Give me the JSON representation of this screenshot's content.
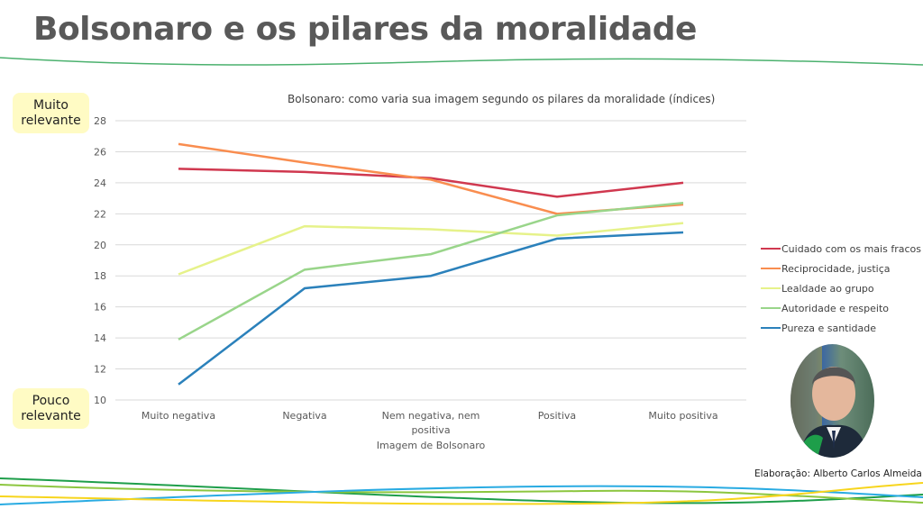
{
  "slide": {
    "title": "Bolsonaro e os pilares da moralidade",
    "top_label": [
      "Muito",
      "relevante"
    ],
    "bottom_label": [
      "Pouco",
      "relevante"
    ],
    "credit": "Elaboração: Alberto Carlos Almeida",
    "portrait_alt": "Foto de Jair Bolsonaro",
    "colors": {
      "title": "#595959",
      "relevance_box": "#fffbc4",
      "deco_green": "#1e9e4a",
      "deco_lightgreen": "#8cc63f",
      "deco_blue": "#29abe2",
      "deco_yellow": "#f7d51d"
    }
  },
  "chart_data": {
    "type": "line",
    "title": "Bolsonaro: como varia sua imagem segundo os pilares da moralidade (índices)",
    "xlabel": "Imagem de Bolsonaro",
    "ylabel": "",
    "categories": [
      "Muito negativa",
      "Negativa",
      "Nem negativa, nem positiva",
      "Positiva",
      "Muito positiva"
    ],
    "category_lines": [
      [
        "Muito negativa"
      ],
      [
        "Negativa"
      ],
      [
        "Nem negativa, nem",
        "positiva"
      ],
      [
        "Positiva"
      ],
      [
        "Muito positiva"
      ]
    ],
    "ylim": [
      10,
      28
    ],
    "yticks": [
      10,
      12,
      14,
      16,
      18,
      20,
      22,
      24,
      26,
      28
    ],
    "grid": true,
    "legend_position": "right",
    "series": [
      {
        "name": "Cuidado com os mais fracos",
        "color": "#d0384f",
        "values": [
          24.9,
          24.7,
          24.3,
          23.1,
          24.0
        ]
      },
      {
        "name": "Reciprocidade, justiça",
        "color": "#f98d4f",
        "values": [
          26.5,
          25.3,
          24.2,
          22.0,
          22.6
        ]
      },
      {
        "name": "Lealdade ao grupo",
        "color": "#e6f28a",
        "values": [
          18.1,
          21.2,
          21.0,
          20.6,
          21.4
        ]
      },
      {
        "name": "Autoridade e respeito",
        "color": "#99d58a",
        "values": [
          13.9,
          18.4,
          19.4,
          21.9,
          22.7
        ]
      },
      {
        "name": "Pureza e santidade",
        "color": "#2b81bb",
        "values": [
          11.0,
          17.2,
          18.0,
          20.4,
          20.8
        ]
      }
    ]
  }
}
